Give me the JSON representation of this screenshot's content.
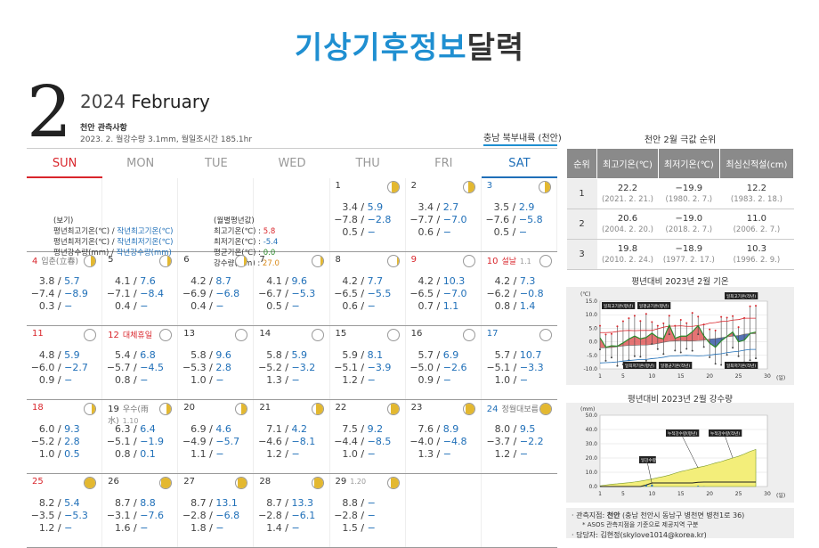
{
  "title": {
    "part1": "기상기후정보",
    "part2": "달력"
  },
  "month_number": "2",
  "year": "2024",
  "month_name": "February",
  "obs_title": "천안 관측사항",
  "obs_stats": "2023. 2. 월강수량 3.1mm, 월일조시간 185.1hr",
  "region": "충남 북부내륙 (천안)",
  "weekdays": [
    "SUN",
    "MON",
    "TUE",
    "WED",
    "THU",
    "FRI",
    "SAT"
  ],
  "legend": {
    "head": "(보기)",
    "l1a": "평년최고기온(℃) / ",
    "l1b": "작년최고기온(℃)",
    "l2a": "평년최저기온(℃) / ",
    "l2b": "작년최저기온(℃)",
    "l3a": "평년강수량(mm) / ",
    "l3b": "작년강수량(mm)",
    "avg_head": "(월별평년값)",
    "a1": "최고기온(℃) : ",
    "a1v": "5.8",
    "a2": "최저기온(℃) : ",
    "a2v": "-5.4",
    "a3": "평균기온(℃) : ",
    "a3v": "0.0",
    "a4": "강수량(mm) : ",
    "a4v": "27.0"
  },
  "days": [
    {
      "d": "1",
      "hi": "3.4",
      "hi2": "5.9",
      "lo": "−7.8",
      "lo2": "−2.8",
      "pr": "0.5",
      "pr2": "−",
      "moon": 0.65
    },
    {
      "d": "2",
      "hi": "3.4",
      "hi2": "2.7",
      "lo": "−7.7",
      "lo2": "−7.0",
      "pr": "0.6",
      "pr2": "−",
      "moon": 0.55
    },
    {
      "d": "3",
      "hi": "3.5",
      "hi2": "2.9",
      "lo": "−7.6",
      "lo2": "−5.8",
      "pr": "0.5",
      "pr2": "−",
      "moon": 0.5
    },
    {
      "d": "4",
      "hol": "입춘(立春)",
      "hi": "3.8",
      "hi2": "5.7",
      "lo": "−7.4",
      "lo2": "−8.9",
      "pr": "0.3",
      "pr2": "−",
      "moon": 0.4
    },
    {
      "d": "5",
      "hi": "4.1",
      "hi2": "7.6",
      "lo": "−7.1",
      "lo2": "−8.4",
      "pr": "0.4",
      "pr2": "−",
      "moon": 0.35
    },
    {
      "d": "6",
      "hi": "4.2",
      "hi2": "8.7",
      "lo": "−6.9",
      "lo2": "−6.8",
      "pr": "0.4",
      "pr2": "−",
      "moon": 0.3
    },
    {
      "d": "7",
      "hi": "4.1",
      "hi2": "9.6",
      "lo": "−6.7",
      "lo2": "−5.3",
      "pr": "0.5",
      "pr2": "−",
      "moon": 0.2
    },
    {
      "d": "8",
      "hi": "4.2",
      "hi2": "7.7",
      "lo": "−6.5",
      "lo2": "−5.5",
      "pr": "0.6",
      "pr2": "−",
      "moon": 0.1
    },
    {
      "d": "9",
      "hi": "4.2",
      "hi2": "10.3",
      "lo": "−6.5",
      "lo2": "−7.0",
      "pr": "0.7",
      "pr2": "1.1",
      "moon": 0.0
    },
    {
      "d": "10",
      "hol": "설날",
      "lunar": "1.1",
      "hi": "4.2",
      "hi2": "7.3",
      "lo": "−6.2",
      "lo2": "−0.8",
      "pr": "0.8",
      "pr2": "1.4",
      "moon": 0.0
    },
    {
      "d": "11",
      "hi": "4.8",
      "hi2": "5.9",
      "lo": "−6.0",
      "lo2": "−2.7",
      "pr": "0.9",
      "pr2": "−",
      "moon": 0.0
    },
    {
      "d": "12",
      "hol": "대체휴일",
      "hi": "5.4",
      "hi2": "6.8",
      "lo": "−5.7",
      "lo2": "−4.5",
      "pr": "0.8",
      "pr2": "−",
      "moon": 0.0
    },
    {
      "d": "13",
      "hi": "5.8",
      "hi2": "9.6",
      "lo": "−5.3",
      "lo2": "2.8",
      "pr": "1.0",
      "pr2": "−",
      "moon": 0.0
    },
    {
      "d": "14",
      "hi": "5.8",
      "hi2": "5.9",
      "lo": "−5.2",
      "lo2": "−3.2",
      "pr": "1.3",
      "pr2": "−",
      "moon": 0.0
    },
    {
      "d": "15",
      "hi": "5.9",
      "hi2": "8.1",
      "lo": "−5.1",
      "lo2": "−3.9",
      "pr": "1.2",
      "pr2": "−",
      "moon": 0.0
    },
    {
      "d": "16",
      "hi": "5.7",
      "hi2": "6.9",
      "lo": "−5.0",
      "lo2": "−2.6",
      "pr": "0.9",
      "pr2": "−",
      "moon": 0.0
    },
    {
      "d": "17",
      "hi": "5.7",
      "hi2": "10.7",
      "lo": "−5.1",
      "lo2": "−3.3",
      "pr": "1.0",
      "pr2": "−",
      "moon": 0.0
    },
    {
      "d": "18",
      "hi": "6.0",
      "hi2": "9.3",
      "lo": "−5.2",
      "lo2": "2.8",
      "pr": "1.0",
      "pr2": "0.5",
      "moon": 0.35
    },
    {
      "d": "19",
      "hol": "우수(雨水)",
      "lunar": "1.10",
      "hi": "6.3",
      "hi2": "6.4",
      "lo": "−5.1",
      "lo2": "−1.9",
      "pr": "0.8",
      "pr2": "0.1",
      "moon": 0.45
    },
    {
      "d": "20",
      "hi": "6.9",
      "hi2": "4.6",
      "lo": "−4.9",
      "lo2": "−5.7",
      "pr": "1.1",
      "pr2": "−",
      "moon": 0.5
    },
    {
      "d": "21",
      "hi": "7.1",
      "hi2": "4.2",
      "lo": "−4.6",
      "lo2": "−8.1",
      "pr": "1.2",
      "pr2": "−",
      "moon": 0.6
    },
    {
      "d": "22",
      "hi": "7.5",
      "hi2": "9.2",
      "lo": "−4.4",
      "lo2": "−8.5",
      "pr": "1.0",
      "pr2": "−",
      "moon": 0.7
    },
    {
      "d": "23",
      "hi": "7.6",
      "hi2": "8.9",
      "lo": "−4.0",
      "lo2": "−4.8",
      "pr": "1.3",
      "pr2": "−",
      "moon": 0.85
    },
    {
      "d": "24",
      "hol": "정월대보름",
      "hi": "8.0",
      "hi2": "9.5",
      "lo": "−3.7",
      "lo2": "−2.2",
      "pr": "1.2",
      "pr2": "−",
      "moon": 1.0
    },
    {
      "d": "25",
      "hi": "8.2",
      "hi2": "5.4",
      "lo": "−3.5",
      "lo2": "−5.3",
      "pr": "1.2",
      "pr2": "−",
      "moon": 1.0
    },
    {
      "d": "26",
      "hi": "8.7",
      "hi2": "8.8",
      "lo": "−3.1",
      "lo2": "−7.6",
      "pr": "1.6",
      "pr2": "−",
      "moon": 0.9
    },
    {
      "d": "27",
      "hi": "8.7",
      "hi2": "13.1",
      "lo": "−2.8",
      "lo2": "−6.8",
      "pr": "1.8",
      "pr2": "−",
      "moon": 0.85
    },
    {
      "d": "28",
      "hi": "8.7",
      "hi2": "13.3",
      "lo": "−2.8",
      "lo2": "−6.1",
      "pr": "1.4",
      "pr2": "−",
      "moon": 0.8
    },
    {
      "d": "29",
      "lunar": "1.20",
      "hi": "8.8",
      "hi2": "−",
      "lo": "−2.8",
      "lo2": "−",
      "pr": "1.5",
      "pr2": "−",
      "moon": 0.7
    }
  ],
  "rank": {
    "title": "천안 2월 극값 순위",
    "headers": [
      "순위",
      "최고기온(℃)",
      "최저기온(℃)",
      "최심신적설(cm)"
    ],
    "rows": [
      {
        "r": "1",
        "a": "22.2",
        "ad": "(2021. 2. 21.)",
        "b": "−19.9",
        "bd": "(1980. 2. 7.)",
        "c": "12.2",
        "cd": "(1983. 2. 18.)"
      },
      {
        "r": "2",
        "a": "20.6",
        "ad": "(2004. 2. 20.)",
        "b": "−19.0",
        "bd": "(2018. 2. 7.)",
        "c": "11.0",
        "cd": "(2006. 2. 7.)"
      },
      {
        "r": "3",
        "a": "19.8",
        "ad": "(2010. 2. 24.)",
        "b": "−18.9",
        "bd": "(1977. 2. 17.)",
        "c": "10.3",
        "cd": "(1996. 2. 9.)"
      }
    ]
  },
  "chart_data": [
    {
      "type": "line",
      "title": "평년대비 2023년 2월 기온",
      "ylabel": "(℃)",
      "xlabel": "(일)",
      "ylim": [
        -10,
        15
      ],
      "yticks": [
        "15.0",
        "10.0",
        "5.0",
        "0.0",
        "-5.0",
        "-10.0"
      ],
      "xticks": [
        "1",
        "5",
        "10",
        "15",
        "20",
        "25",
        "30"
      ],
      "labels": [
        "일최고기온(평년)",
        "일평균기온(평년)",
        "일최저기온(평년)",
        "일평균기온(작년)",
        "일최고기온(작년)",
        "일최저기온(작년)"
      ],
      "colors": {
        "hi_last": "#d9262c",
        "mean_last": "#2a8a2a",
        "lo_last": "#333333",
        "warm": "#e05a5a",
        "cold": "#3a5aa8"
      },
      "x": [
        1,
        2,
        3,
        4,
        5,
        6,
        7,
        8,
        9,
        10,
        11,
        12,
        13,
        14,
        15,
        16,
        17,
        18,
        19,
        20,
        21,
        22,
        23,
        24,
        25,
        26,
        27,
        28
      ],
      "series": [
        {
          "name": "일최고기온(평년)",
          "values": [
            3.4,
            3.4,
            3.5,
            3.8,
            4.1,
            4.2,
            4.1,
            4.2,
            4.2,
            4.2,
            4.8,
            5.4,
            5.8,
            5.8,
            5.9,
            5.7,
            5.7,
            6.0,
            6.3,
            6.9,
            7.1,
            7.5,
            7.6,
            8.0,
            8.2,
            8.7,
            8.7,
            8.7
          ]
        },
        {
          "name": "일최저기온(평년)",
          "values": [
            -7.8,
            -7.7,
            -7.6,
            -7.4,
            -7.1,
            -6.9,
            -6.7,
            -6.5,
            -6.5,
            -6.2,
            -6.0,
            -5.7,
            -5.3,
            -5.2,
            -5.1,
            -5.0,
            -5.1,
            -5.2,
            -5.1,
            -4.9,
            -4.6,
            -4.4,
            -4.0,
            -3.7,
            -3.5,
            -3.1,
            -2.8,
            -2.8
          ]
        },
        {
          "name": "일평균기온(평년)",
          "values": [
            -2.2,
            -2.2,
            -2.1,
            -1.8,
            -1.5,
            -1.3,
            -1.3,
            -1.2,
            -1.2,
            -1.0,
            -0.6,
            -0.2,
            0.2,
            0.3,
            0.4,
            0.3,
            0.3,
            0.4,
            0.6,
            1.0,
            1.2,
            1.5,
            1.8,
            2.1,
            2.3,
            2.8,
            3.0,
            3.0
          ]
        },
        {
          "name": "일평균기온(작년)",
          "values": [
            1.5,
            -2.0,
            -1.5,
            -1.6,
            -0.4,
            1.0,
            2.1,
            1.1,
            1.6,
            3.2,
            1.6,
            1.1,
            6.2,
            1.3,
            2.1,
            2.1,
            3.7,
            6.0,
            2.2,
            -0.5,
            -2.0,
            0.3,
            2.0,
            3.6,
            0.0,
            0.6,
            3.1,
            3.6
          ]
        },
        {
          "name": "일최고기온(작년)",
          "values": [
            5.9,
            2.7,
            2.9,
            5.7,
            7.6,
            8.7,
            9.6,
            7.7,
            10.3,
            7.3,
            5.9,
            6.8,
            9.6,
            5.9,
            8.1,
            6.9,
            10.7,
            9.3,
            6.4,
            4.6,
            4.2,
            9.2,
            8.9,
            9.5,
            5.4,
            8.8,
            13.1,
            13.3
          ]
        },
        {
          "name": "일최저기온(작년)",
          "values": [
            -2.8,
            -7.0,
            -5.8,
            -8.9,
            -8.4,
            -6.8,
            -5.3,
            -5.5,
            -7.0,
            -0.8,
            -2.7,
            -4.5,
            2.8,
            -3.2,
            -3.9,
            -2.6,
            -3.3,
            2.8,
            -1.9,
            -5.7,
            -8.1,
            -8.5,
            -4.8,
            -2.2,
            -5.3,
            -7.6,
            -6.8,
            -6.1
          ]
        }
      ]
    },
    {
      "type": "area",
      "title": "평년대비 2023년 2월 강수량",
      "ylabel": "(mm)",
      "xlabel": "(일)",
      "ylim": [
        0,
        50
      ],
      "yticks": [
        "50.0",
        "40.0",
        "30.0",
        "20.0",
        "10.0",
        "0.0"
      ],
      "xticks": [
        "1",
        "5",
        "10",
        "15",
        "20",
        "25",
        "30"
      ],
      "labels": [
        "일강수량",
        "누적강수량(평년)",
        "누적강수량(작년)"
      ],
      "x": [
        1,
        2,
        3,
        4,
        5,
        6,
        7,
        8,
        9,
        10,
        11,
        12,
        13,
        14,
        15,
        16,
        17,
        18,
        19,
        20,
        21,
        22,
        23,
        24,
        25,
        26,
        27,
        28
      ],
      "series": [
        {
          "name": "누적강수량(평년)",
          "values": [
            0.5,
            1.1,
            1.6,
            1.9,
            2.3,
            2.7,
            3.2,
            3.8,
            4.5,
            5.3,
            6.2,
            7.0,
            8.0,
            9.3,
            10.5,
            11.4,
            12.4,
            13.4,
            14.2,
            15.3,
            16.5,
            17.5,
            18.8,
            20.0,
            21.2,
            22.8,
            24.6,
            26.0
          ]
        },
        {
          "name": "누적강수량(작년)",
          "values": [
            0,
            0,
            0,
            0,
            0,
            0,
            0,
            0,
            1.1,
            2.5,
            2.5,
            2.5,
            2.5,
            2.5,
            2.5,
            2.5,
            2.5,
            3.0,
            3.1,
            3.1,
            3.1,
            3.1,
            3.1,
            3.1,
            3.1,
            3.1,
            3.1,
            3.1
          ]
        },
        {
          "name": "일강수량",
          "values": [
            0,
            0,
            0,
            0,
            0,
            0,
            0,
            0,
            1.1,
            1.4,
            0,
            0,
            0,
            0,
            0,
            0,
            0,
            0.5,
            0.1,
            0,
            0,
            0,
            0,
            0,
            0,
            0,
            0,
            0
          ]
        }
      ]
    }
  ],
  "footer": {
    "l1a": "· 관측지점: ",
    "l1b": "천안",
    "l1c": " (충남 천안시 동남구 병천면 병천1로 36)",
    "l2": "* ASOS 관측지점을 기준으로 제공지역 구분",
    "l3": "· 담당자: 김현정(skylove1014@korea.kr)"
  }
}
